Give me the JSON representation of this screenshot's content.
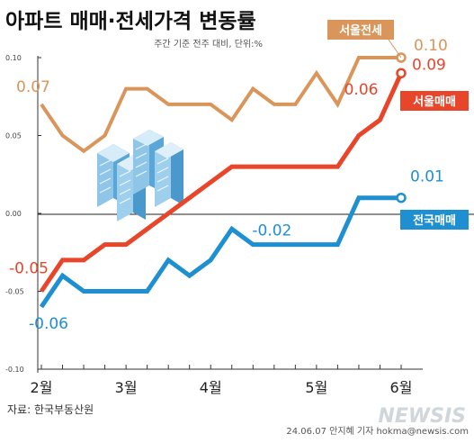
{
  "header": {
    "title": "아파트 매매·전세가격 변동률",
    "subtitle": "주간 기준 전주 대비, 단위:%"
  },
  "footer": {
    "source": "자료: 한국부동산원",
    "credit": "24.06.07 안지혜 기자 hokma@newsis.com",
    "watermark": "NEWSIS"
  },
  "colors": {
    "seoul_jeonse": "#d9955a",
    "seoul_maemae": "#e8462b",
    "national_maemae": "#1e8fd0",
    "background": "#ffffff",
    "gray_text": "#666666"
  },
  "chart_data": {
    "type": "line",
    "ylim": [
      -0.1,
      0.1
    ],
    "yticks": [
      "0.10",
      "0.05",
      "0.00",
      "-0.05",
      "-0.10"
    ],
    "yticks_values": [
      0.1,
      0.05,
      0.0,
      -0.05,
      -0.1
    ],
    "month_labels": [
      "2월",
      "3월",
      "4월",
      "5월",
      "6월"
    ],
    "month_week_index": [
      0,
      4,
      8,
      13,
      17
    ],
    "grid": false,
    "series": [
      {
        "name": "서울전세",
        "values": [
          0.07,
          0.05,
          0.04,
          0.05,
          0.08,
          0.08,
          0.07,
          0.07,
          0.07,
          0.06,
          0.08,
          0.07,
          0.07,
          0.09,
          0.07,
          0.1,
          0.1,
          0.1
        ]
      },
      {
        "name": "서울매매",
        "values": [
          -0.05,
          -0.03,
          -0.03,
          -0.02,
          -0.02,
          -0.01,
          0.0,
          0.01,
          0.02,
          0.03,
          0.03,
          0.03,
          0.03,
          0.03,
          0.03,
          0.05,
          0.06,
          0.09
        ]
      },
      {
        "name": "전국매매",
        "values": [
          -0.06,
          -0.04,
          -0.05,
          -0.05,
          -0.05,
          -0.05,
          -0.03,
          -0.04,
          -0.03,
          -0.01,
          -0.02,
          -0.02,
          -0.02,
          -0.02,
          -0.02,
          0.01,
          0.01,
          0.01
        ]
      }
    ],
    "annotations": [
      {
        "text": "0.07",
        "series": 0,
        "index": 0
      },
      {
        "text": "0.10",
        "series": 0,
        "index": 17
      },
      {
        "text": "-0.05",
        "series": 1,
        "index": 0
      },
      {
        "text": "0.06",
        "series": 1,
        "index": 16
      },
      {
        "text": "0.09",
        "series": 1,
        "index": 17
      },
      {
        "text": "-0.06",
        "series": 2,
        "index": 0
      },
      {
        "text": "-0.02",
        "series": 2,
        "index": 12
      },
      {
        "text": "0.01",
        "series": 2,
        "index": 17
      }
    ],
    "legend_labels": [
      "서울전세",
      "서울매매",
      "전국매매"
    ]
  }
}
